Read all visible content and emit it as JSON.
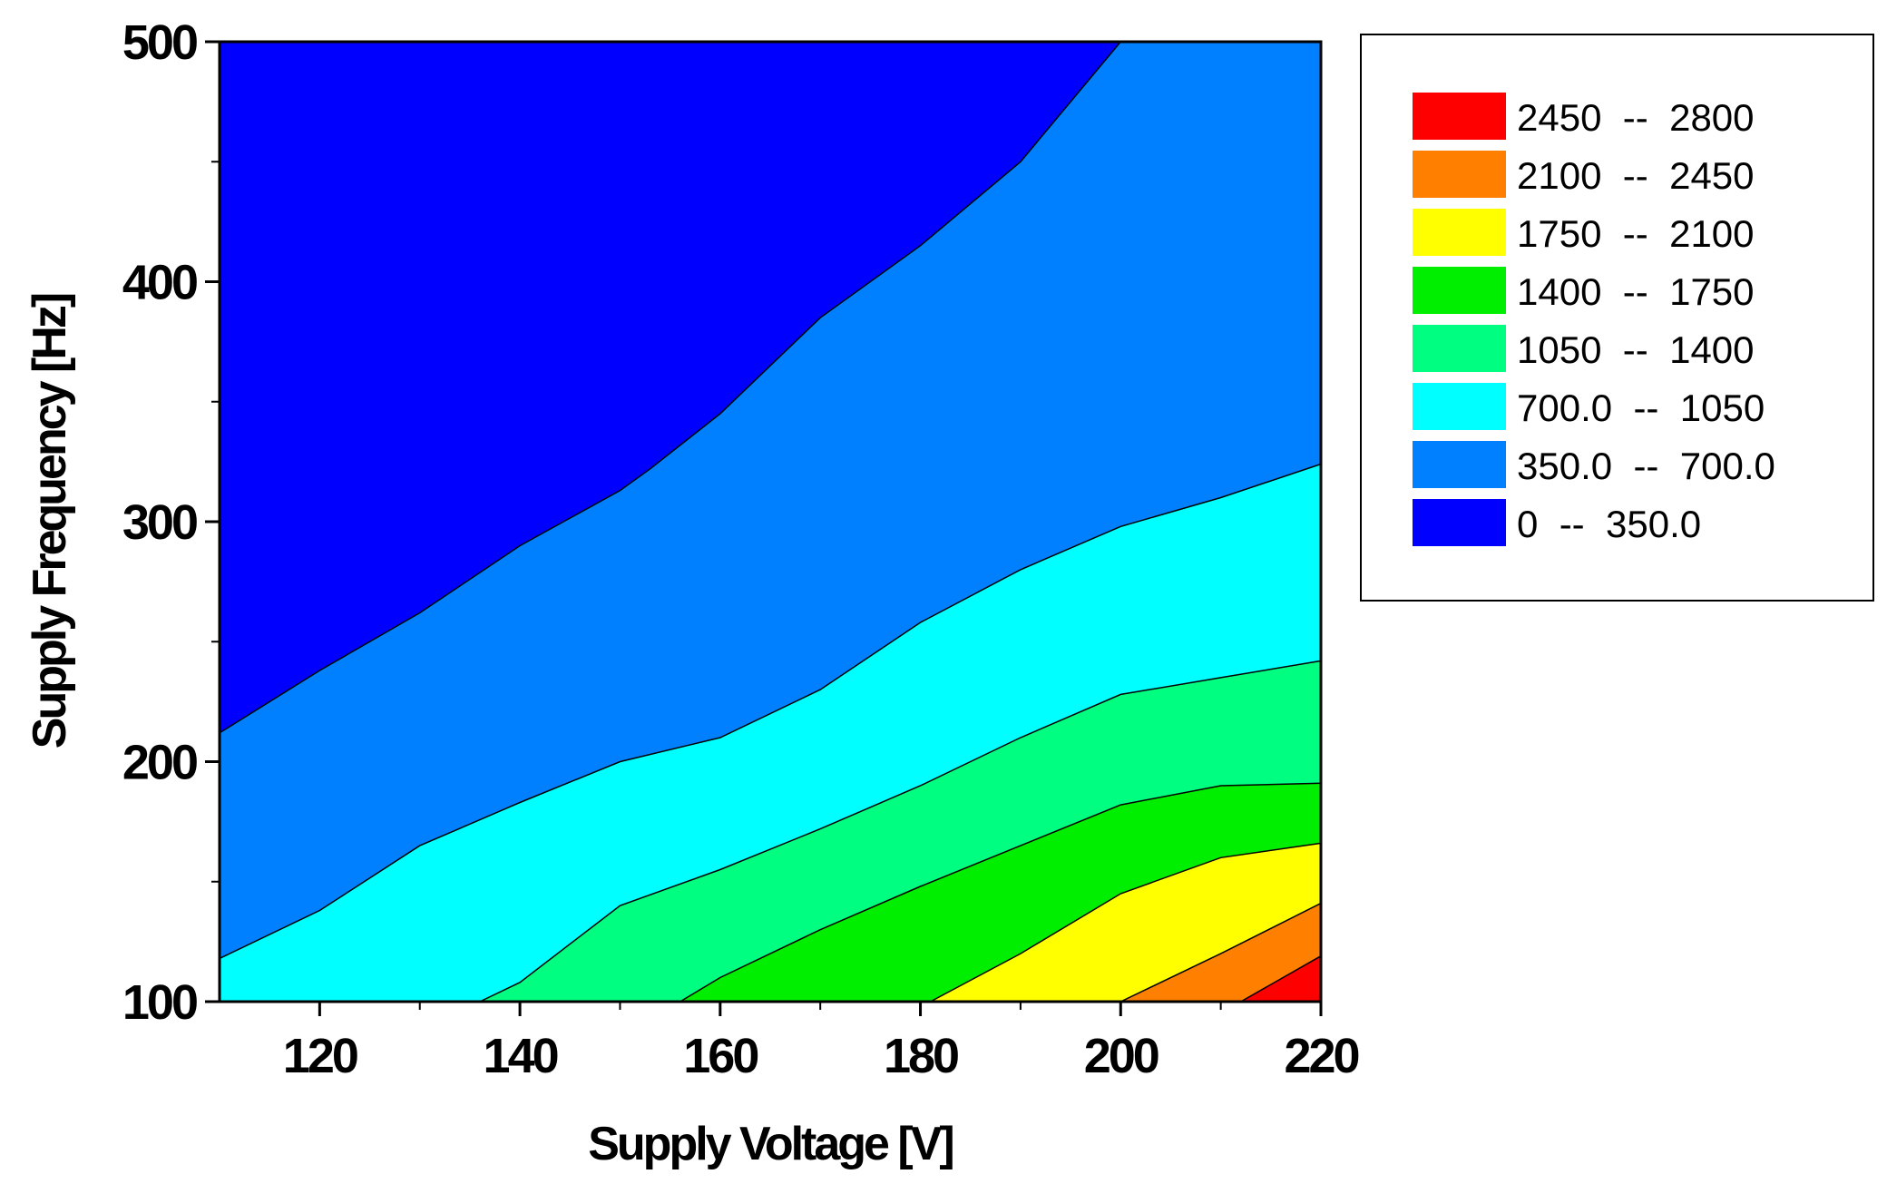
{
  "chart_data": {
    "type": "contour",
    "xlabel": "Supply Voltage [V]",
    "ylabel": "Supply Frequency [Hz]",
    "xlim": [
      110,
      220
    ],
    "ylim": [
      100,
      500
    ],
    "x_ticks": [
      120,
      140,
      160,
      180,
      200,
      220
    ],
    "x_tick_labels": [
      "120",
      "140",
      "160",
      "180",
      "200",
      "220"
    ],
    "y_ticks": [
      100,
      200,
      300,
      400,
      500
    ],
    "y_tick_labels": [
      "100",
      "200",
      "300",
      "400",
      "500"
    ],
    "y_minor_ticks": [
      150,
      250,
      350,
      450
    ],
    "x_minor_ticks": [
      130,
      150,
      170,
      190,
      210
    ],
    "levels": [
      {
        "range": [
          2450,
          2800
        ],
        "label": "2450  --  2800",
        "color": "#ff0000"
      },
      {
        "range": [
          2100,
          2450
        ],
        "label": "2100  --  2450",
        "color": "#ff8000"
      },
      {
        "range": [
          1750,
          2100
        ],
        "label": "1750  --  2100",
        "color": "#ffff00"
      },
      {
        "range": [
          1400,
          1750
        ],
        "label": "1400  --  1750",
        "color": "#00ee00"
      },
      {
        "range": [
          1050,
          1400
        ],
        "label": "1050  --  1400",
        "color": "#00ff80"
      },
      {
        "range": [
          700,
          1050
        ],
        "label": "700.0  --  1050",
        "color": "#00ffff"
      },
      {
        "range": [
          350,
          700
        ],
        "label": "350.0  --  700.0",
        "color": "#0080ff"
      },
      {
        "range": [
          0,
          350
        ],
        "label": "0  --  350.0",
        "color": "#0000ff"
      }
    ],
    "contours": [
      {
        "level": 350,
        "points": [
          [
            110,
            212
          ],
          [
            120,
            238
          ],
          [
            130,
            262
          ],
          [
            140,
            290
          ],
          [
            150,
            313
          ],
          [
            153,
            322
          ],
          [
            160,
            345
          ],
          [
            170,
            385
          ],
          [
            180,
            415
          ],
          [
            190,
            450
          ],
          [
            200,
            500
          ]
        ]
      },
      {
        "level": 700,
        "points": [
          [
            110,
            118
          ],
          [
            120,
            138
          ],
          [
            130,
            165
          ],
          [
            140,
            183
          ],
          [
            150,
            200
          ],
          [
            160,
            210
          ],
          [
            170,
            230
          ],
          [
            180,
            258
          ],
          [
            190,
            280
          ],
          [
            200,
            298
          ],
          [
            210,
            310
          ],
          [
            220,
            324
          ]
        ]
      },
      {
        "level": 1050,
        "points": [
          [
            136,
            100
          ],
          [
            140,
            108
          ],
          [
            150,
            140
          ],
          [
            160,
            155
          ],
          [
            170,
            172
          ],
          [
            180,
            190
          ],
          [
            190,
            210
          ],
          [
            200,
            228
          ],
          [
            210,
            235
          ],
          [
            220,
            242
          ]
        ]
      },
      {
        "level": 1400,
        "points": [
          [
            156,
            100
          ],
          [
            160,
            110
          ],
          [
            170,
            130
          ],
          [
            180,
            148
          ],
          [
            190,
            165
          ],
          [
            200,
            182
          ],
          [
            210,
            190
          ],
          [
            220,
            191
          ]
        ]
      },
      {
        "level": 1750,
        "points": [
          [
            181,
            100
          ],
          [
            190,
            120
          ],
          [
            200,
            145
          ],
          [
            210,
            160
          ],
          [
            220,
            166
          ]
        ]
      },
      {
        "level": 2100,
        "points": [
          [
            200,
            100
          ],
          [
            210,
            120
          ],
          [
            220,
            141
          ]
        ]
      },
      {
        "level": 2450,
        "points": [
          [
            212,
            100
          ],
          [
            220,
            119
          ]
        ]
      }
    ]
  }
}
